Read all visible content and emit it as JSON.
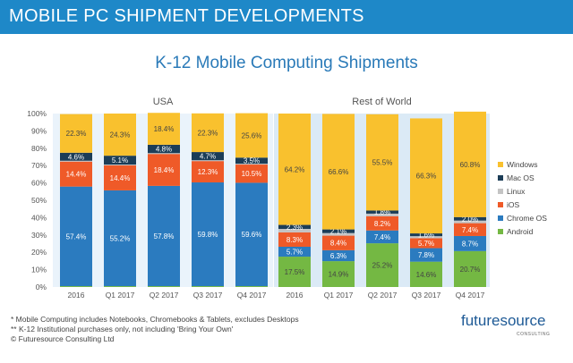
{
  "banner": {
    "title": "MOBILE PC SHIPMENT DEVELOPMENTS"
  },
  "chart_data": {
    "type": "bar",
    "stacked": true,
    "percent": true,
    "title": "K-12 Mobile Computing Shipments",
    "groups": [
      {
        "name": "USA",
        "categories": [
          "2016",
          "Q1 2017",
          "Q2 2017",
          "Q3 2017",
          "Q4 2017"
        ]
      },
      {
        "name": "Rest of World",
        "categories": [
          "2016",
          "Q1 2017",
          "Q2 2017",
          "Q3 2017",
          "Q4 2017"
        ]
      }
    ],
    "series": [
      {
        "name": "Android",
        "color": "#74b843",
        "values": [
          0.5,
          0.5,
          0.5,
          0.5,
          0.5,
          17.5,
          14.9,
          25.2,
          14.6,
          20.7
        ],
        "labels": [
          "",
          "",
          "",
          "",
          "",
          "17.5%",
          "14.9%",
          "25.2%",
          "14.6%",
          "20.7%"
        ]
      },
      {
        "name": "Chrome OS",
        "color": "#2b7bbf",
        "values": [
          57.4,
          55.2,
          57.8,
          59.8,
          59.6,
          5.7,
          6.3,
          7.4,
          7.8,
          8.7
        ],
        "labels": [
          "57.4%",
          "55.2%",
          "57.8%",
          "59.8%",
          "59.6%",
          "5.7%",
          "6.3%",
          "7.4%",
          "7.8%",
          "8.7%"
        ]
      },
      {
        "name": "iOS",
        "color": "#ef5a28",
        "values": [
          14.4,
          14.4,
          18.4,
          12.3,
          10.5,
          8.3,
          8.4,
          8.2,
          5.7,
          7.4
        ],
        "labels": [
          "14.4%",
          "14.4%",
          "18.4%",
          "12.3%",
          "10.5%",
          "8.3%",
          "8.4%",
          "8.2%",
          "5.7%",
          "7.4%"
        ]
      },
      {
        "name": "Linux",
        "color": "#c4c4c4",
        "values": [
          0.5,
          0.5,
          0.5,
          0.5,
          0.5,
          2.0,
          1.5,
          1.5,
          1.2,
          1.5
        ],
        "labels": [
          "",
          "",
          "",
          "",
          "",
          "",
          "",
          "",
          "",
          ""
        ]
      },
      {
        "name": "Mac OS",
        "color": "#1c3d57",
        "values": [
          4.6,
          5.1,
          4.8,
          4.7,
          3.5,
          2.3,
          2.1,
          1.8,
          1.6,
          2.0
        ],
        "labels": [
          "4.6%",
          "5.1%",
          "4.8%",
          "4.7%",
          "3.5%",
          "2.3%",
          "2.1%",
          "1.8%",
          "1.6%",
          "2.0%"
        ]
      },
      {
        "name": "Windows",
        "color": "#f9c12e",
        "values": [
          22.3,
          24.3,
          18.4,
          22.3,
          25.6,
          64.2,
          66.6,
          55.5,
          66.3,
          60.8
        ],
        "labels": [
          "22.3%",
          "24.3%",
          "18.4%",
          "22.3%",
          "25.6%",
          "64.2%",
          "66.6%",
          "55.5%",
          "66.3%",
          "60.8%"
        ]
      }
    ],
    "legend_order": [
      "Windows",
      "Mac OS",
      "Linux",
      "iOS",
      "Chrome OS",
      "Android"
    ],
    "ylim": [
      0,
      100
    ],
    "yticks": [
      "0%",
      "10%",
      "20%",
      "30%",
      "40%",
      "50%",
      "60%",
      "70%",
      "80%",
      "90%",
      "100%"
    ],
    "legend_position": "right",
    "grid": false
  },
  "footnotes": [
    "* Mobile Computing includes Notebooks, Chromebooks & Tablets, excludes Desktops",
    "** K-12 Institutional purchases only, not including 'Bring Your Own'",
    "© Futuresource Consulting Ltd"
  ],
  "logo": {
    "text": "futuresource",
    "subtitle": "CONSULTING"
  }
}
